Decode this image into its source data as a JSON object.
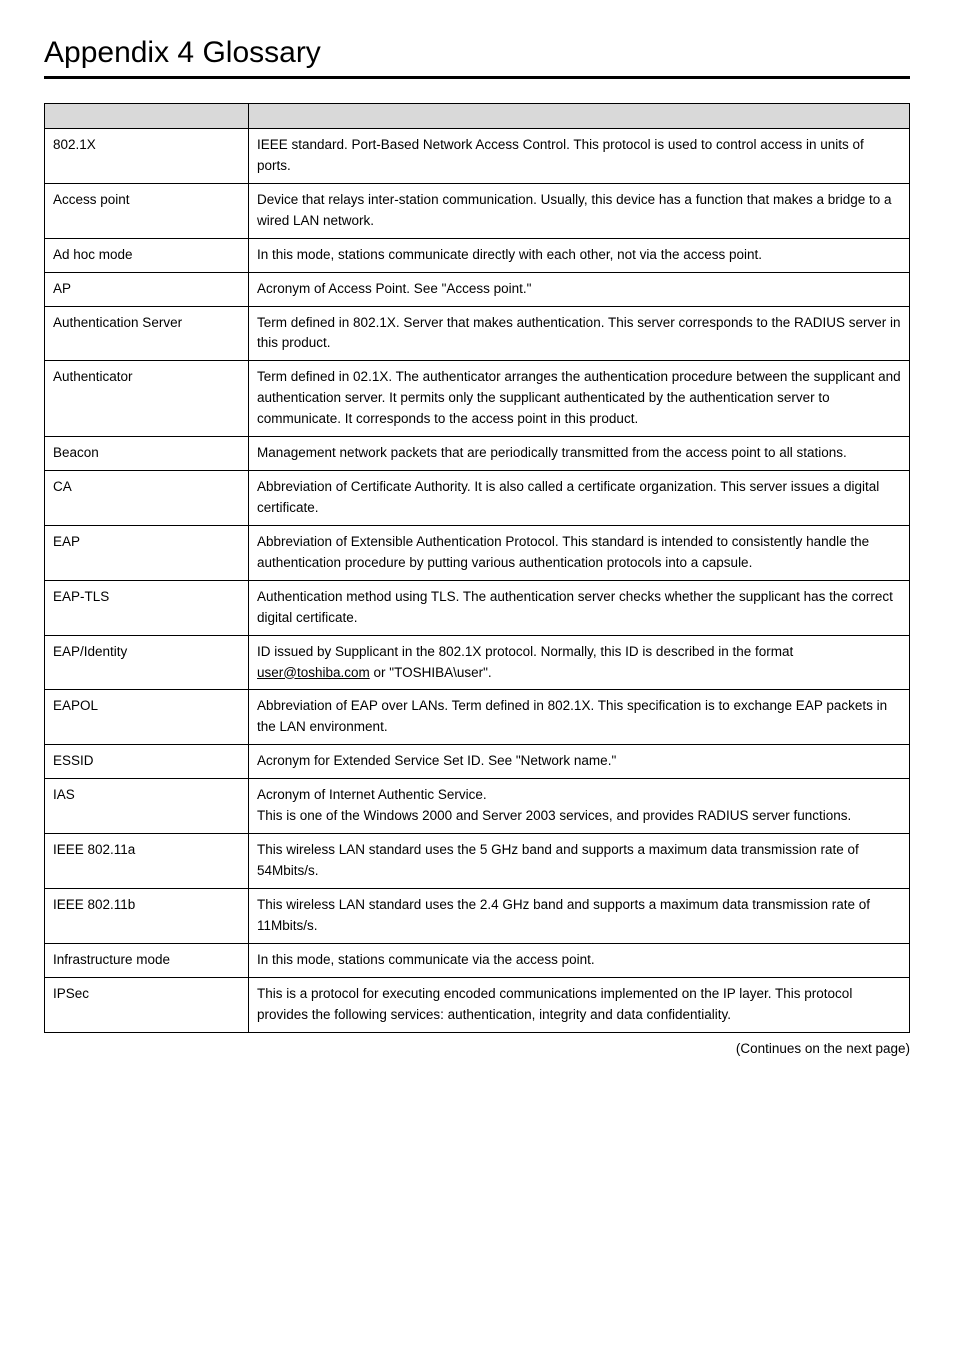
{
  "title": "Appendix 4  Glossary",
  "continues_label": "(Continues on the next page)",
  "table": {
    "columns": [
      "term",
      "definition"
    ],
    "header_bg": "#d9d9d9",
    "border_color": "#000000",
    "rows": [
      {
        "term": "802.1X",
        "definition": "IEEE standard.  Port-Based Network Access Control.  This protocol is used to control access in units of ports."
      },
      {
        "term": "Access point",
        "definition": "Device that relays inter-station communication.  Usually, this device has a function that makes a bridge to a wired LAN network."
      },
      {
        "term": "Ad hoc mode",
        "definition": "In this mode, stations communicate directly with each other, not via the access point."
      },
      {
        "term": "AP",
        "definition": "Acronym of Access Point.  See \"Access point.\""
      },
      {
        "term": "Authentication Server",
        "definition": "Term defined in 802.1X.  Server that makes authentication.  This server corresponds to the RADIUS server in this product."
      },
      {
        "term": "Authenticator",
        "definition": "Term defined in  02.1X.  The authenticator arranges the authentication procedure between the supplicant and authentication server.  It permits only the supplicant authenticated by the authentication server to communicate.  It corresponds to the access point in this product."
      },
      {
        "term": "Beacon",
        "definition": "Management network packets that are periodically transmitted from the access point to all stations."
      },
      {
        "term": "CA",
        "definition": "Abbreviation of Certificate Authority.  It is also called a certificate organization.  This server issues a digital certificate."
      },
      {
        "term": "EAP",
        "definition": "Abbreviation of Extensible Authentication Protocol. This standard is intended to consistently handle the authentication procedure by putting various authentication protocols into a capsule."
      },
      {
        "term": "EAP-TLS",
        "definition": "Authentication method using TLS.  The authentication server checks whether the supplicant has the correct digital certificate."
      },
      {
        "term": "EAP/Identity",
        "definition_pre": "ID issued by Supplicant in the 802.1X protocol. Normally, this ID is described in the format ",
        "definition_link": "user@toshiba.com",
        "definition_post": " or \"TOSHIBA\\user\"."
      },
      {
        "term": "EAPOL",
        "definition": "Abbreviation of EAP over LANs.  Term defined in 802.1X.  This specification is to exchange EAP packets in the LAN environment."
      },
      {
        "term": "ESSID",
        "definition": "Acronym for Extended Service Set ID.  See \"Network name.\""
      },
      {
        "term": "IAS",
        "definition": "Acronym of Internet Authentic Service.\nThis is one of the Windows 2000 and Server 2003 services, and provides RADIUS server functions."
      },
      {
        "term": "IEEE 802.11a",
        "definition": "This wireless LAN standard uses the 5 GHz band and supports a maximum data transmission rate of 54Mbits/s."
      },
      {
        "term": "IEEE 802.11b",
        "definition": "This wireless LAN standard uses the 2.4 GHz band and supports a maximum data transmission rate of 11Mbits/s."
      },
      {
        "term": "Infrastructure mode",
        "definition": "In this mode, stations communicate via the access point."
      },
      {
        "term": "IPSec",
        "definition": "This is a protocol for executing encoded communications implemented on the IP layer.  This protocol provides the following services: authentication, integrity and data confidentiality."
      }
    ]
  }
}
